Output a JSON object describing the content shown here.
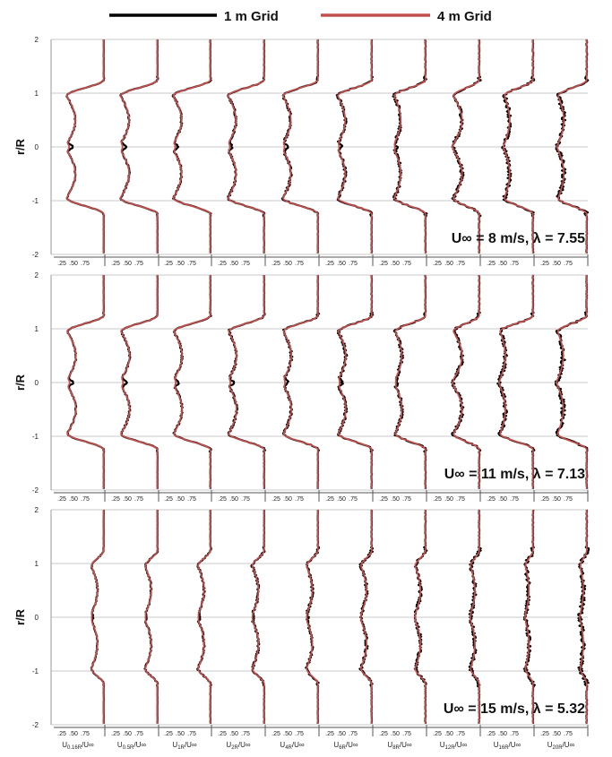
{
  "chart_data": {
    "type": "line",
    "title": "",
    "legend": {
      "position": "top-center",
      "entries": [
        {
          "label": "1 m Grid",
          "color": "#000000"
        },
        {
          "label": "4 m Grid",
          "color": "#c0504d"
        }
      ]
    },
    "ylabel": "r/R",
    "ylim": [
      -2,
      2
    ],
    "y_ticks": [
      "2",
      "1",
      "0",
      "-1",
      "-2"
    ],
    "subplot_x_ticks": [
      ".25",
      ".50",
      ".75"
    ],
    "subplot_xlim": [
      0,
      1
    ],
    "columns": [
      "0.16R",
      "0.5R",
      "1R",
      "2R",
      "4R",
      "6R",
      "8R",
      "12R",
      "16R",
      "20R"
    ],
    "column_label_prefix": "U",
    "column_label_suffix": "/U∞",
    "panels": [
      {
        "annotation": "U∞ = 8 m/s, λ = 7.55",
        "freestream": 0.98,
        "profiles": [
          {
            "center": 0.22,
            "trough": 0.29,
            "depth": 0.2,
            "width": 0.1,
            "peak": 0.15
          },
          {
            "center": 0.22,
            "trough": 0.29,
            "depth": 0.2,
            "width": 0.1,
            "peak": 0.14
          },
          {
            "center": 0.23,
            "trough": 0.29,
            "depth": 0.19,
            "width": 0.12,
            "peak": 0.13
          },
          {
            "center": 0.26,
            "trough": 0.31,
            "depth": 0.18,
            "width": 0.14,
            "peak": 0.12
          },
          {
            "center": 0.29,
            "trough": 0.33,
            "depth": 0.18,
            "width": 0.16,
            "peak": 0.11
          },
          {
            "center": 0.31,
            "trough": 0.35,
            "depth": 0.17,
            "width": 0.18,
            "peak": 0.1
          },
          {
            "center": 0.37,
            "trough": 0.4,
            "depth": 0.15,
            "width": 0.2,
            "peak": 0.07
          },
          {
            "center": 0.45,
            "trough": 0.5,
            "depth": 0.2,
            "width": 0.22,
            "peak": 0.04
          },
          {
            "center": 0.38,
            "trough": 0.45,
            "depth": 0.12,
            "width": 0.25,
            "peak": 0.0
          },
          {
            "center": 0.4,
            "trough": 0.45,
            "depth": 0.13,
            "width": 0.25,
            "peak": 0.0
          }
        ]
      },
      {
        "annotation": "U∞ = 11 m/s, λ = 7.13",
        "freestream": 0.98,
        "profiles": [
          {
            "center": 0.22,
            "trough": 0.3,
            "depth": 0.2,
            "width": 0.1,
            "peak": 0.15
          },
          {
            "center": 0.22,
            "trough": 0.3,
            "depth": 0.2,
            "width": 0.1,
            "peak": 0.14
          },
          {
            "center": 0.23,
            "trough": 0.3,
            "depth": 0.19,
            "width": 0.12,
            "peak": 0.13
          },
          {
            "center": 0.26,
            "trough": 0.32,
            "depth": 0.18,
            "width": 0.14,
            "peak": 0.12
          },
          {
            "center": 0.29,
            "trough": 0.34,
            "depth": 0.18,
            "width": 0.16,
            "peak": 0.11
          },
          {
            "center": 0.32,
            "trough": 0.36,
            "depth": 0.17,
            "width": 0.18,
            "peak": 0.1
          },
          {
            "center": 0.38,
            "trough": 0.42,
            "depth": 0.15,
            "width": 0.2,
            "peak": 0.07
          },
          {
            "center": 0.45,
            "trough": 0.5,
            "depth": 0.2,
            "width": 0.22,
            "peak": 0.04
          },
          {
            "center": 0.3,
            "trough": 0.37,
            "depth": 0.12,
            "width": 0.25,
            "peak": 0.0
          },
          {
            "center": 0.4,
            "trough": 0.44,
            "depth": 0.13,
            "width": 0.25,
            "peak": 0.0
          }
        ]
      },
      {
        "annotation": "U∞ = 15 m/s, λ = 5.32",
        "freestream": 0.98,
        "profiles": [
          {
            "center": 0.72,
            "trough": 0.75,
            "depth": 0.14,
            "width": 0.1,
            "peak": 0.06
          },
          {
            "center": 0.72,
            "trough": 0.75,
            "depth": 0.14,
            "width": 0.1,
            "peak": 0.06
          },
          {
            "center": 0.72,
            "trough": 0.75,
            "depth": 0.14,
            "width": 0.1,
            "peak": 0.06
          },
          {
            "center": 0.73,
            "trough": 0.76,
            "depth": 0.14,
            "width": 0.11,
            "peak": 0.05
          },
          {
            "center": 0.75,
            "trough": 0.77,
            "depth": 0.13,
            "width": 0.12,
            "peak": 0.05
          },
          {
            "center": 0.76,
            "trough": 0.78,
            "depth": 0.13,
            "width": 0.13,
            "peak": 0.04
          },
          {
            "center": 0.77,
            "trough": 0.79,
            "depth": 0.12,
            "width": 0.14,
            "peak": 0.04
          },
          {
            "center": 0.8,
            "trough": 0.82,
            "depth": 0.1,
            "width": 0.16,
            "peak": 0.02
          },
          {
            "center": 0.83,
            "trough": 0.84,
            "depth": 0.08,
            "width": 0.18,
            "peak": 0.01
          },
          {
            "center": 0.85,
            "trough": 0.86,
            "depth": 0.07,
            "width": 0.2,
            "peak": 0.0
          }
        ]
      }
    ]
  }
}
